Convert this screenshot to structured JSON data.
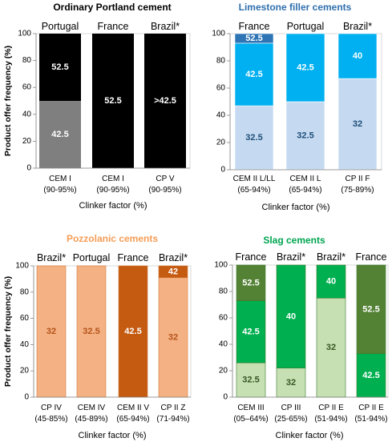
{
  "chart_data": [
    {
      "type": "bar",
      "stacked": true,
      "title": "Ordinary Portland cement",
      "title_color": "#000000",
      "ylabel": "Product offer frequency (%)",
      "xlabel": "Clinker factor (%)",
      "ylim": [
        0,
        100
      ],
      "yticks": [
        0,
        20,
        40,
        60,
        80,
        100
      ],
      "grid": false,
      "bar_headers": [
        "Portugal",
        "France",
        "Brazil*"
      ],
      "categories": [
        "CEM I",
        "CEM I",
        "CP V"
      ],
      "category_ranges": [
        "(90-95%)",
        "(90-95%)",
        "(90-95%)"
      ],
      "series": [
        {
          "name": "42.5",
          "color": "#7f7f7f",
          "label_color": "#ffffff",
          "values": [
            50,
            0,
            0
          ]
        },
        {
          "name": "52.5",
          "color": "#000000",
          "label_color": "#ffffff",
          "values": [
            50,
            100,
            0
          ]
        },
        {
          "name": ">42.5",
          "color": "#000000",
          "label_color": "#ffffff",
          "values": [
            0,
            0,
            100
          ]
        }
      ]
    },
    {
      "type": "bar",
      "stacked": true,
      "title": "Limestone filler cements",
      "title_color": "#2f6fad",
      "xlabel": "Clinker factor (%)",
      "ylim": [
        0,
        100
      ],
      "yticks": [
        0,
        20,
        40,
        60,
        80,
        100
      ],
      "grid": false,
      "bar_headers": [
        "France",
        "Portugal",
        "Brazil*"
      ],
      "categories": [
        "CEM II L/LL",
        "CEM II L",
        "CP II F"
      ],
      "category_ranges": [
        "(65-94%)",
        "(65-94%)",
        "(75-89%)"
      ],
      "series": [
        {
          "name": "32.5",
          "color": "#c5daf1",
          "label_color": "#1f4e79",
          "values": [
            47,
            50,
            0
          ]
        },
        {
          "name": "42.5",
          "color": "#00b0f0",
          "label_color": "#ffffff",
          "values": [
            46,
            50,
            0
          ]
        },
        {
          "name": "52.5",
          "color": "#2e75b6",
          "label_color": "#ffffff",
          "values": [
            7,
            0,
            0
          ]
        },
        {
          "name": "32",
          "color": "#c5daf1",
          "label_color": "#1f4e79",
          "values": [
            0,
            0,
            67
          ]
        },
        {
          "name": "40",
          "color": "#00b0f0",
          "label_color": "#ffffff",
          "values": [
            0,
            0,
            33
          ]
        }
      ]
    },
    {
      "type": "bar",
      "stacked": true,
      "title": "Pozzolanic cements",
      "title_color": "#f59d56",
      "ylabel": "Product offer frequency (%)",
      "xlabel": "Clinker factor (%)",
      "ylim": [
        0,
        100
      ],
      "yticks": [
        0,
        20,
        40,
        60,
        80,
        100
      ],
      "grid": false,
      "bar_headers": [
        "Brazil*",
        "Portugal",
        "France",
        "Brazil*"
      ],
      "categories": [
        "CP IV",
        "CEM IV",
        "CEM II V",
        "CP II Z"
      ],
      "category_ranges": [
        "(45-85%)",
        "(45-89%)",
        "(65-94%)",
        "(71-94%)"
      ],
      "series": [
        {
          "name": "32",
          "color": "#f4b183",
          "label_color": "#b5541c",
          "values": [
            100,
            0,
            0,
            91
          ]
        },
        {
          "name": "32.5",
          "color": "#f4b183",
          "label_color": "#b5541c",
          "values": [
            0,
            100,
            0,
            0
          ]
        },
        {
          "name": "42.5",
          "color": "#c55a11",
          "label_color": "#ffffff",
          "values": [
            0,
            0,
            100,
            0
          ]
        },
        {
          "name": "42",
          "color": "#c55a11",
          "label_color": "#ffffff",
          "values": [
            0,
            0,
            0,
            9
          ]
        }
      ]
    },
    {
      "type": "bar",
      "stacked": true,
      "title": "Slag cements",
      "title_color": "#00a550",
      "xlabel": "Clinker factor (%)",
      "ylim": [
        0,
        100
      ],
      "yticks": [
        0,
        20,
        40,
        60,
        80,
        100
      ],
      "grid": false,
      "bar_headers": [
        "France",
        "Brazil*",
        "Brazil*",
        "France"
      ],
      "categories": [
        "CEM III",
        "CP III",
        "CP II E",
        "CP II E"
      ],
      "category_ranges": [
        "(05–64%)",
        "(25-65%)",
        "(51-94%)",
        "(51-94%)"
      ],
      "series": [
        {
          "name": "32.5",
          "color": "#c6e0b4",
          "label_color": "#375623",
          "values": [
            26,
            0,
            0,
            0
          ]
        },
        {
          "name": "42.5",
          "color": "#00b050",
          "label_color": "#ffffff",
          "values": [
            47,
            0,
            0,
            33
          ]
        },
        {
          "name": "52.5",
          "color": "#548235",
          "label_color": "#ffffff",
          "values": [
            27,
            0,
            0,
            67
          ]
        },
        {
          "name": "32",
          "color": "#c6e0b4",
          "label_color": "#375623",
          "values": [
            0,
            22,
            75,
            0
          ]
        },
        {
          "name": "40",
          "color": "#00b050",
          "label_color": "#ffffff",
          "values": [
            0,
            78,
            25,
            0
          ]
        }
      ]
    }
  ]
}
